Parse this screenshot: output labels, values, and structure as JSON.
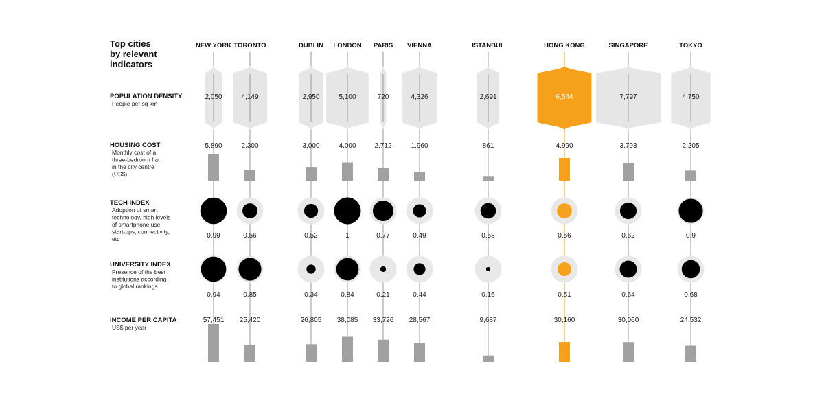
{
  "title_lines": [
    "Top cities",
    "by relevant",
    "indicators"
  ],
  "colors": {
    "default": "#a1a1a1",
    "band": "#e6e6e6",
    "highlight": "#f5a11c",
    "circle": "#000000",
    "ring": "#e8e8e8",
    "axis": "#999999"
  },
  "chart_data": {
    "type": "table",
    "highlight_city": "HONG KONG",
    "cities": [
      "NEW YORK",
      "TORONTO",
      "DUBLIN",
      "LONDON",
      "PARIS",
      "VIENNA",
      "ISTANBUL",
      "HONG KONG",
      "SINGAPORE",
      "TOKYO"
    ],
    "rows": [
      {
        "key": "population",
        "label": "POPULATION DENSITY",
        "sublines": [
          "People per sq km"
        ],
        "display": [
          "2,050",
          "4,149",
          "2,950",
          "5,100",
          "720",
          "4,326",
          "2,691",
          "6,544",
          "7,797",
          "4,750"
        ],
        "values": [
          2050,
          4149,
          2950,
          5100,
          720,
          4326,
          2691,
          6544,
          7797,
          4750
        ]
      },
      {
        "key": "housing",
        "label": "HOUSING COST",
        "sublines": [
          "Monthly cost of a",
          "three-bedroom flat",
          "in the city centre",
          "(US$)"
        ],
        "display": [
          "5,890",
          "2,300",
          "3,000",
          "4,000",
          "2,712",
          "1,960",
          "861",
          "4,990",
          "3,793",
          "2,205"
        ],
        "values": [
          5890,
          2300,
          3000,
          4000,
          2712,
          1960,
          861,
          4990,
          3793,
          2205
        ]
      },
      {
        "key": "tech",
        "label": "TECH INDEX",
        "sublines": [
          "Adoption of smart",
          "technology, high levels",
          "of smartphone use,",
          "start-ups, connectivity,",
          "etc"
        ],
        "display": [
          "0.99",
          "0.56",
          "0.52",
          "1",
          "0.77",
          "0.49",
          "0.58",
          "0.56",
          "0.62",
          "0.9"
        ],
        "values": [
          0.99,
          0.56,
          0.52,
          1,
          0.77,
          0.49,
          0.58,
          0.56,
          0.62,
          0.9
        ]
      },
      {
        "key": "university",
        "label": "UNIVERSITY INDEX",
        "sublines": [
          "Presence of the best",
          "institutions according",
          "to global rankings"
        ],
        "display": [
          "0.94",
          "0.85",
          "0.34",
          "0.84",
          "0.21",
          "0.44",
          "0.16",
          "0.51",
          "0.64",
          "0.68"
        ],
        "values": [
          0.94,
          0.85,
          0.34,
          0.84,
          0.21,
          0.44,
          0.16,
          0.51,
          0.64,
          0.68
        ]
      },
      {
        "key": "income",
        "label": "INCOME PER CAPITA",
        "sublines": [
          "US$ per year"
        ],
        "display": [
          "57,451",
          "25,420",
          "26,805",
          "38,085",
          "33,726",
          "28,567",
          "9,687",
          "30,160",
          "30,060",
          "24,532"
        ],
        "values": [
          57451,
          25420,
          26805,
          38085,
          33726,
          28567,
          9687,
          30160,
          30060,
          24532
        ]
      }
    ]
  }
}
